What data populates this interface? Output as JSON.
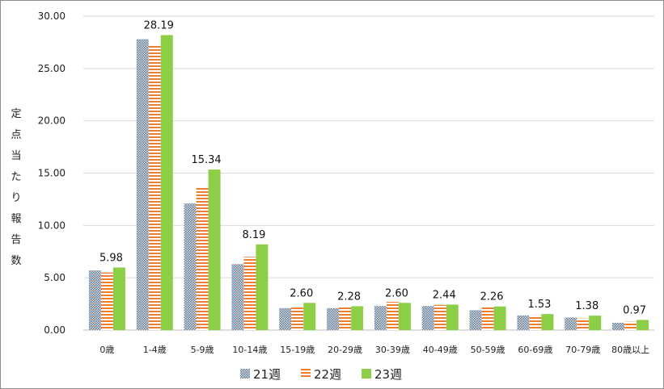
{
  "chart_data": {
    "type": "bar",
    "ylabel": "定点当たり報告数",
    "xlabel": "",
    "ylim": [
      0,
      30
    ],
    "yticks": [
      "0.00",
      "5.00",
      "10.00",
      "15.00",
      "20.00",
      "25.00",
      "30.00"
    ],
    "grid": true,
    "legend_position": "bottom",
    "categories": [
      "0歳",
      "1-4歳",
      "5-9歳",
      "10-14歳",
      "15-19歳",
      "20-29歳",
      "30-39歳",
      "40-49歳",
      "50-59歳",
      "60-69歳",
      "70-79歳",
      "80歳以上"
    ],
    "series": [
      {
        "name": "21週",
        "values": [
          5.7,
          27.8,
          12.1,
          6.3,
          2.1,
          2.1,
          2.3,
          2.3,
          1.9,
          1.4,
          1.2,
          0.7
        ],
        "color": "#8da0b4",
        "pattern": "dots"
      },
      {
        "name": "22週",
        "values": [
          5.5,
          27.2,
          13.6,
          7.0,
          2.3,
          2.3,
          2.7,
          2.4,
          2.2,
          1.4,
          1.1,
          0.8
        ],
        "color": "#ed7d31",
        "pattern": "stripes"
      },
      {
        "name": "23週",
        "values": [
          5.98,
          28.19,
          15.34,
          8.19,
          2.6,
          2.28,
          2.6,
          2.44,
          2.26,
          1.53,
          1.38,
          0.97
        ],
        "color": "#8ccf47",
        "pattern": "solid"
      }
    ],
    "data_labels": [
      "5.98",
      "28.19",
      "15.34",
      "8.19",
      "2.60",
      "2.28",
      "2.60",
      "2.44",
      "2.26",
      "1.53",
      "1.38",
      "0.97"
    ]
  }
}
